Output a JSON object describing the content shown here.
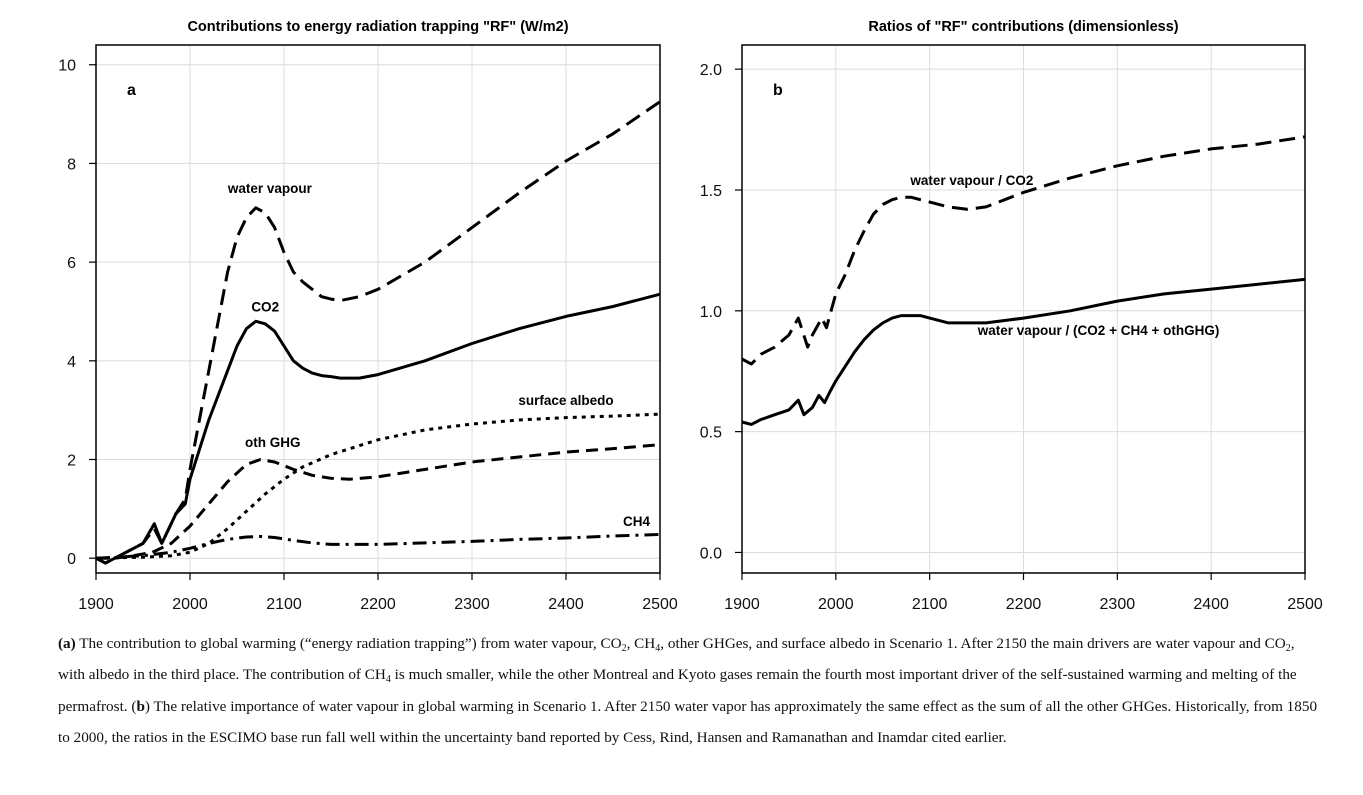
{
  "chart_data": [
    {
      "type": "line",
      "panel_label": "a",
      "title": "Contributions to energy radiation trapping \"RF\" (W/m2)",
      "xlabel": "",
      "ylabel": "",
      "xlim": [
        1900,
        2500
      ],
      "ylim": [
        -0.3,
        10.4
      ],
      "x_ticks": [
        1900,
        2000,
        2100,
        2200,
        2300,
        2400,
        2500
      ],
      "y_ticks": [
        0,
        2,
        4,
        6,
        8,
        10
      ],
      "grid": true,
      "legend": "none",
      "series": [
        {
          "name": "water vapour",
          "style": "long-dash",
          "points": [
            [
              1900,
              0.0
            ],
            [
              1910,
              -0.1
            ],
            [
              1930,
              0.1
            ],
            [
              1950,
              0.3
            ],
            [
              1962,
              0.6
            ],
            [
              1970,
              0.3
            ],
            [
              1985,
              0.9
            ],
            [
              1995,
              1.2
            ],
            [
              2000,
              1.8
            ],
            [
              2010,
              2.8
            ],
            [
              2020,
              3.8
            ],
            [
              2030,
              4.8
            ],
            [
              2040,
              5.8
            ],
            [
              2050,
              6.5
            ],
            [
              2060,
              6.9
            ],
            [
              2070,
              7.1
            ],
            [
              2080,
              7.0
            ],
            [
              2090,
              6.7
            ],
            [
              2100,
              6.2
            ],
            [
              2110,
              5.8
            ],
            [
              2120,
              5.6
            ],
            [
              2130,
              5.45
            ],
            [
              2140,
              5.3
            ],
            [
              2150,
              5.25
            ],
            [
              2160,
              5.22
            ],
            [
              2180,
              5.3
            ],
            [
              2200,
              5.45
            ],
            [
              2250,
              6.0
            ],
            [
              2300,
              6.7
            ],
            [
              2350,
              7.4
            ],
            [
              2400,
              8.05
            ],
            [
              2450,
              8.6
            ],
            [
              2500,
              9.25
            ]
          ]
        },
        {
          "name": "CO2",
          "style": "solid",
          "points": [
            [
              1900,
              0.0
            ],
            [
              1910,
              -0.1
            ],
            [
              1930,
              0.1
            ],
            [
              1950,
              0.3
            ],
            [
              1962,
              0.7
            ],
            [
              1970,
              0.3
            ],
            [
              1985,
              0.9
            ],
            [
              1995,
              1.1
            ],
            [
              2000,
              1.6
            ],
            [
              2010,
              2.2
            ],
            [
              2020,
              2.8
            ],
            [
              2030,
              3.3
            ],
            [
              2040,
              3.8
            ],
            [
              2050,
              4.3
            ],
            [
              2060,
              4.65
            ],
            [
              2070,
              4.8
            ],
            [
              2080,
              4.75
            ],
            [
              2090,
              4.6
            ],
            [
              2100,
              4.3
            ],
            [
              2110,
              4.0
            ],
            [
              2120,
              3.85
            ],
            [
              2130,
              3.75
            ],
            [
              2140,
              3.7
            ],
            [
              2150,
              3.68
            ],
            [
              2160,
              3.65
            ],
            [
              2180,
              3.65
            ],
            [
              2200,
              3.72
            ],
            [
              2250,
              4.0
            ],
            [
              2300,
              4.35
            ],
            [
              2350,
              4.65
            ],
            [
              2400,
              4.9
            ],
            [
              2450,
              5.1
            ],
            [
              2500,
              5.35
            ]
          ]
        },
        {
          "name": "oth GHG",
          "style": "dash",
          "points": [
            [
              1900,
              0.0
            ],
            [
              1920,
              0.0
            ],
            [
              1940,
              0.05
            ],
            [
              1960,
              0.12
            ],
            [
              1980,
              0.3
            ],
            [
              2000,
              0.65
            ],
            [
              2020,
              1.1
            ],
            [
              2040,
              1.55
            ],
            [
              2060,
              1.9
            ],
            [
              2075,
              2.0
            ],
            [
              2090,
              1.95
            ],
            [
              2110,
              1.8
            ],
            [
              2130,
              1.68
            ],
            [
              2150,
              1.62
            ],
            [
              2170,
              1.6
            ],
            [
              2200,
              1.65
            ],
            [
              2250,
              1.8
            ],
            [
              2300,
              1.95
            ],
            [
              2350,
              2.05
            ],
            [
              2400,
              2.15
            ],
            [
              2450,
              2.22
            ],
            [
              2500,
              2.3
            ]
          ]
        },
        {
          "name": "surface albedo",
          "style": "dotted",
          "points": [
            [
              1900,
              0.0
            ],
            [
              1950,
              0.02
            ],
            [
              1980,
              0.05
            ],
            [
              2000,
              0.12
            ],
            [
              2020,
              0.3
            ],
            [
              2040,
              0.6
            ],
            [
              2060,
              0.95
            ],
            [
              2080,
              1.3
            ],
            [
              2100,
              1.6
            ],
            [
              2120,
              1.85
            ],
            [
              2150,
              2.1
            ],
            [
              2200,
              2.4
            ],
            [
              2250,
              2.6
            ],
            [
              2300,
              2.72
            ],
            [
              2350,
              2.8
            ],
            [
              2400,
              2.85
            ],
            [
              2450,
              2.88
            ],
            [
              2500,
              2.92
            ]
          ]
        },
        {
          "name": "CH4",
          "style": "dash-dot",
          "points": [
            [
              1900,
              0.0
            ],
            [
              1950,
              0.05
            ],
            [
              1980,
              0.12
            ],
            [
              2000,
              0.2
            ],
            [
              2020,
              0.3
            ],
            [
              2040,
              0.38
            ],
            [
              2060,
              0.43
            ],
            [
              2075,
              0.44
            ],
            [
              2090,
              0.42
            ],
            [
              2110,
              0.36
            ],
            [
              2130,
              0.31
            ],
            [
              2150,
              0.28
            ],
            [
              2200,
              0.28
            ],
            [
              2250,
              0.31
            ],
            [
              2300,
              0.34
            ],
            [
              2350,
              0.38
            ],
            [
              2400,
              0.41
            ],
            [
              2450,
              0.45
            ],
            [
              2500,
              0.48
            ]
          ]
        }
      ],
      "annotations": [
        {
          "text": "water vapour",
          "x": 2085,
          "y": 7.4
        },
        {
          "text": "CO2",
          "x": 2080,
          "y": 5.0
        },
        {
          "text": "oth GHG",
          "x": 2088,
          "y": 2.25
        },
        {
          "text": "surface albedo",
          "x": 2400,
          "y": 3.1
        },
        {
          "text": "CH4",
          "x": 2475,
          "y": 0.65
        }
      ]
    },
    {
      "type": "line",
      "panel_label": "b",
      "title": "Ratios of \"RF\" contributions (dimensionless)",
      "xlabel": "",
      "ylabel": "",
      "xlim": [
        1900,
        2500
      ],
      "ylim": [
        -0.085,
        2.1
      ],
      "x_ticks": [
        1900,
        2000,
        2100,
        2200,
        2300,
        2400,
        2500
      ],
      "y_ticks": [
        0.0,
        0.5,
        1.0,
        1.5,
        2.0
      ],
      "y_tick_labels": [
        "0.0",
        "0.5",
        "1.0",
        "1.5",
        "2.0"
      ],
      "grid": true,
      "legend": "none",
      "series": [
        {
          "name": "water vapour / CO2",
          "style": "long-dash",
          "points": [
            [
              1900,
              0.8
            ],
            [
              1910,
              0.78
            ],
            [
              1920,
              0.82
            ],
            [
              1935,
              0.85
            ],
            [
              1950,
              0.9
            ],
            [
              1960,
              0.97
            ],
            [
              1970,
              0.85
            ],
            [
              1975,
              0.9
            ],
            [
              1985,
              0.97
            ],
            [
              1990,
              0.93
            ],
            [
              1995,
              1.0
            ],
            [
              2000,
              1.07
            ],
            [
              2010,
              1.15
            ],
            [
              2020,
              1.25
            ],
            [
              2030,
              1.33
            ],
            [
              2040,
              1.4
            ],
            [
              2050,
              1.44
            ],
            [
              2060,
              1.46
            ],
            [
              2070,
              1.47
            ],
            [
              2080,
              1.47
            ],
            [
              2090,
              1.46
            ],
            [
              2100,
              1.45
            ],
            [
              2120,
              1.43
            ],
            [
              2140,
              1.42
            ],
            [
              2160,
              1.43
            ],
            [
              2180,
              1.46
            ],
            [
              2200,
              1.49
            ],
            [
              2250,
              1.55
            ],
            [
              2300,
              1.6
            ],
            [
              2350,
              1.64
            ],
            [
              2400,
              1.67
            ],
            [
              2450,
              1.69
            ],
            [
              2500,
              1.72
            ]
          ]
        },
        {
          "name": "water vapour / (CO2 + CH4 + othGHG)",
          "style": "solid",
          "points": [
            [
              1900,
              0.54
            ],
            [
              1910,
              0.53
            ],
            [
              1920,
              0.55
            ],
            [
              1935,
              0.57
            ],
            [
              1950,
              0.59
            ],
            [
              1960,
              0.63
            ],
            [
              1966,
              0.57
            ],
            [
              1975,
              0.6
            ],
            [
              1982,
              0.65
            ],
            [
              1988,
              0.62
            ],
            [
              1993,
              0.66
            ],
            [
              2000,
              0.71
            ],
            [
              2010,
              0.77
            ],
            [
              2020,
              0.83
            ],
            [
              2030,
              0.88
            ],
            [
              2040,
              0.92
            ],
            [
              2050,
              0.95
            ],
            [
              2060,
              0.97
            ],
            [
              2070,
              0.98
            ],
            [
              2080,
              0.98
            ],
            [
              2090,
              0.98
            ],
            [
              2100,
              0.97
            ],
            [
              2120,
              0.95
            ],
            [
              2140,
              0.95
            ],
            [
              2160,
              0.95
            ],
            [
              2180,
              0.96
            ],
            [
              2200,
              0.97
            ],
            [
              2250,
              1.0
            ],
            [
              2300,
              1.04
            ],
            [
              2350,
              1.07
            ],
            [
              2400,
              1.09
            ],
            [
              2450,
              1.11
            ],
            [
              2500,
              1.13
            ]
          ]
        }
      ],
      "annotations": [
        {
          "text": "water vapour / CO2",
          "x": 2145,
          "y": 1.52
        },
        {
          "text": "water vapour / (CO2 + CH4 + othGHG)",
          "x": 2280,
          "y": 0.9
        }
      ]
    }
  ]
}
